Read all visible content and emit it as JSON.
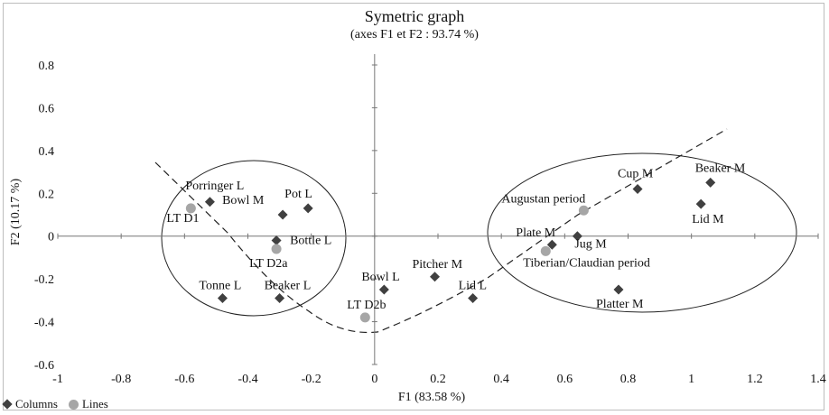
{
  "chart_data": {
    "type": "scatter",
    "title": "Symetric graph",
    "subtitle": "(axes F1 et F2 : 93.74 %)",
    "xlabel": "F1 (83.58 %)",
    "ylabel": "F2 (10.17 %)",
    "xlim": [
      -1,
      1.4
    ],
    "ylim": [
      -0.6,
      0.8
    ],
    "xticks": [
      "-1",
      "-0.8",
      "-0.6",
      "-0.4",
      "-0.2",
      "0",
      "0.2",
      "0.4",
      "0.6",
      "0.8",
      "1",
      "1.2",
      "1.4"
    ],
    "yticks": [
      "-0.6",
      "-0.4",
      "-0.2",
      "0",
      "0.2",
      "0.4",
      "0.6",
      "0.8"
    ],
    "grid": false,
    "legend_position": "bottom-left",
    "series": [
      {
        "name": "Columns",
        "marker": "diamond",
        "color": "#404040",
        "points": [
          {
            "label": "Porringer L",
            "x": -0.52,
            "y": 0.16
          },
          {
            "label": "Bowl M",
            "x": -0.29,
            "y": 0.1
          },
          {
            "label": "Pot L",
            "x": -0.21,
            "y": 0.13
          },
          {
            "label": "Bottle L",
            "x": -0.31,
            "y": -0.02
          },
          {
            "label": "Tonne L",
            "x": -0.48,
            "y": -0.29
          },
          {
            "label": "Beaker L",
            "x": -0.3,
            "y": -0.29
          },
          {
            "label": "Bowl L",
            "x": 0.03,
            "y": -0.25
          },
          {
            "label": "Pitcher M",
            "x": 0.19,
            "y": -0.19
          },
          {
            "label": "Lid  L",
            "x": 0.31,
            "y": -0.29
          },
          {
            "label": "Plate M",
            "x": 0.56,
            "y": -0.04
          },
          {
            "label": "Jug M",
            "x": 0.64,
            "y": 0.0
          },
          {
            "label": "Cup M",
            "x": 0.83,
            "y": 0.22
          },
          {
            "label": "Beaker M",
            "x": 1.06,
            "y": 0.25
          },
          {
            "label": "Lid M",
            "x": 1.03,
            "y": 0.15
          },
          {
            "label": "Platter M",
            "x": 0.77,
            "y": -0.25
          }
        ]
      },
      {
        "name": "Lines",
        "marker": "circle",
        "color": "#a6a6a6",
        "points": [
          {
            "label": "LT D1",
            "x": -0.58,
            "y": 0.13
          },
          {
            "label": "LT D2a",
            "x": -0.31,
            "y": -0.06
          },
          {
            "label": "LT D2b",
            "x": -0.03,
            "y": -0.38
          },
          {
            "label": "Augustan period",
            "x": 0.66,
            "y": 0.12
          },
          {
            "label": "Tiberian/Claudian period",
            "x": 0.54,
            "y": -0.07
          }
        ]
      }
    ]
  }
}
